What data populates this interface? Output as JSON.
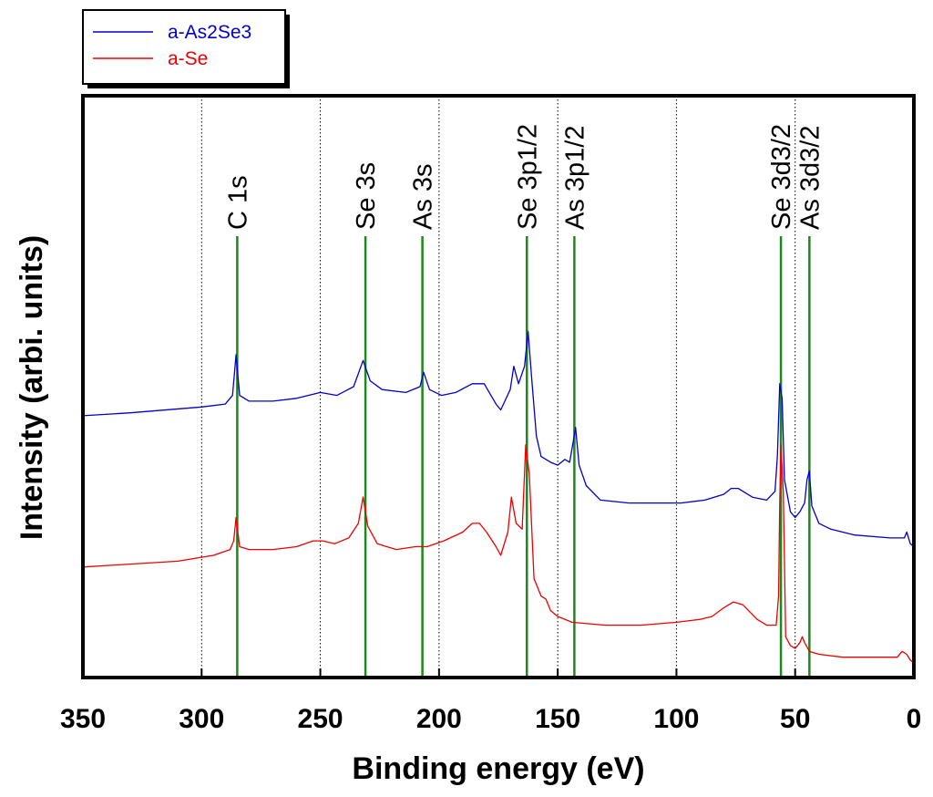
{
  "chart_data": {
    "type": "line",
    "xlabel": "Binding energy (eV)",
    "ylabel": "Intensity (arbi. units)",
    "xlim": [
      350,
      0
    ],
    "ylim": [
      0,
      100
    ],
    "x_ticks": [
      350,
      300,
      250,
      200,
      150,
      100,
      50,
      0
    ],
    "x_tick_labels": [
      "350",
      "300",
      "250",
      "200",
      "150",
      "100",
      "50",
      "0"
    ],
    "grid_x": [
      300,
      250,
      200,
      150,
      100,
      50
    ],
    "legend_position": "top-left",
    "colors": {
      "peak_line": "#1a8a1a",
      "grid": "#000000"
    },
    "peaks": [
      {
        "label": "C 1s",
        "x": 285
      },
      {
        "label": "Se 3s",
        "x": 231
      },
      {
        "label": "As 3s",
        "x": 207
      },
      {
        "label": "Se 3p1/2",
        "x": 163
      },
      {
        "label": "As 3p1/2",
        "x": 143
      },
      {
        "label": "Se 3d3/2",
        "x": 56
      },
      {
        "label": "As 3d3/2",
        "x": 44
      }
    ],
    "series": [
      {
        "name": "a-As2Se3",
        "color": "#0000cc",
        "points": [
          [
            350,
            45.0
          ],
          [
            330,
            45.5
          ],
          [
            300,
            46.5
          ],
          [
            290,
            47.0
          ],
          [
            287,
            48.5
          ],
          [
            285.5,
            55.5
          ],
          [
            284,
            48.5
          ],
          [
            280,
            47.5
          ],
          [
            270,
            47.5
          ],
          [
            260,
            48.0
          ],
          [
            250,
            49.0
          ],
          [
            243,
            48.5
          ],
          [
            236,
            50.0
          ],
          [
            232,
            54.5
          ],
          [
            229,
            51.0
          ],
          [
            224,
            49.5
          ],
          [
            214,
            49.0
          ],
          [
            208,
            50.0
          ],
          [
            206.5,
            52.5
          ],
          [
            204,
            49.5
          ],
          [
            199,
            48.5
          ],
          [
            193,
            49.0
          ],
          [
            186,
            50.5
          ],
          [
            181,
            50.5
          ],
          [
            176,
            47.0
          ],
          [
            174,
            46.0
          ],
          [
            170,
            49.5
          ],
          [
            168.5,
            53.5
          ],
          [
            166.5,
            50.5
          ],
          [
            164,
            53.5
          ],
          [
            162.5,
            59.5
          ],
          [
            161,
            51.5
          ],
          [
            159,
            41.5
          ],
          [
            157,
            38.0
          ],
          [
            153,
            37.0
          ],
          [
            150,
            36.5
          ],
          [
            147,
            37.5
          ],
          [
            145,
            37.0
          ],
          [
            143.5,
            40.5
          ],
          [
            142.5,
            43.0
          ],
          [
            141,
            36.5
          ],
          [
            138,
            33.0
          ],
          [
            132,
            30.5
          ],
          [
            120,
            30.0
          ],
          [
            105,
            30.0
          ],
          [
            98,
            30.0
          ],
          [
            88,
            30.5
          ],
          [
            80,
            31.5
          ],
          [
            77,
            32.5
          ],
          [
            74,
            32.5
          ],
          [
            68,
            31.0
          ],
          [
            62,
            30.5
          ],
          [
            58.5,
            32.0
          ],
          [
            57.5,
            38.0
          ],
          [
            56.5,
            50.5
          ],
          [
            55.5,
            48.0
          ],
          [
            54.5,
            34.0
          ],
          [
            52,
            28.5
          ],
          [
            50,
            27.5
          ],
          [
            48,
            28.5
          ],
          [
            46,
            30.0
          ],
          [
            45,
            34.0
          ],
          [
            44,
            35.5
          ],
          [
            43,
            29.5
          ],
          [
            40,
            26.5
          ],
          [
            35,
            25.5
          ],
          [
            25,
            24.5
          ],
          [
            10,
            24.0
          ],
          [
            4,
            24.0
          ],
          [
            3,
            25.0
          ],
          [
            1.5,
            23.0
          ],
          [
            0,
            22.5
          ]
        ]
      },
      {
        "name": "a-Se",
        "color": "#ee0000",
        "points": [
          [
            350,
            19.0
          ],
          [
            330,
            19.5
          ],
          [
            310,
            20.0
          ],
          [
            295,
            21.0
          ],
          [
            288,
            22.0
          ],
          [
            286.5,
            23.5
          ],
          [
            285.5,
            27.5
          ],
          [
            284,
            22.5
          ],
          [
            280,
            22.0
          ],
          [
            270,
            22.0
          ],
          [
            260,
            22.5
          ],
          [
            253,
            23.5
          ],
          [
            249,
            23.5
          ],
          [
            244,
            23.0
          ],
          [
            238,
            24.0
          ],
          [
            234,
            26.5
          ],
          [
            232,
            31.0
          ],
          [
            230,
            26.0
          ],
          [
            226,
            23.0
          ],
          [
            222,
            22.5
          ],
          [
            218,
            22.0
          ],
          [
            210,
            22.5
          ],
          [
            205,
            22.5
          ],
          [
            198,
            23.5
          ],
          [
            190,
            25.0
          ],
          [
            186,
            26.5
          ],
          [
            183,
            26.5
          ],
          [
            180,
            25.0
          ],
          [
            176,
            22.5
          ],
          [
            174,
            21.0
          ],
          [
            171,
            25.0
          ],
          [
            169.5,
            31.0
          ],
          [
            167.5,
            26.5
          ],
          [
            165,
            25.5
          ],
          [
            163.5,
            40.0
          ],
          [
            162,
            35.0
          ],
          [
            160,
            17.0
          ],
          [
            157,
            14.0
          ],
          [
            155,
            13.5
          ],
          [
            153,
            11.5
          ],
          [
            150,
            10.5
          ],
          [
            144,
            9.5
          ],
          [
            130,
            9.0
          ],
          [
            115,
            9.0
          ],
          [
            100,
            9.5
          ],
          [
            90,
            10.0
          ],
          [
            85,
            10.5
          ],
          [
            80,
            12.0
          ],
          [
            76,
            13.0
          ],
          [
            72,
            12.5
          ],
          [
            66,
            10.0
          ],
          [
            62,
            9.0
          ],
          [
            58,
            9.0
          ],
          [
            57,
            14.0
          ],
          [
            56.5,
            30.0
          ],
          [
            56,
            40.0
          ],
          [
            55,
            32.0
          ],
          [
            54,
            7.0
          ],
          [
            52,
            5.5
          ],
          [
            50,
            5.0
          ],
          [
            48,
            6.0
          ],
          [
            47,
            7.0
          ],
          [
            46,
            6.0
          ],
          [
            44,
            4.5
          ],
          [
            40,
            4.0
          ],
          [
            30,
            3.5
          ],
          [
            15,
            3.5
          ],
          [
            7,
            3.5
          ],
          [
            5,
            4.5
          ],
          [
            3,
            4.0
          ],
          [
            1.5,
            3.0
          ],
          [
            0,
            2.5
          ]
        ]
      }
    ]
  }
}
